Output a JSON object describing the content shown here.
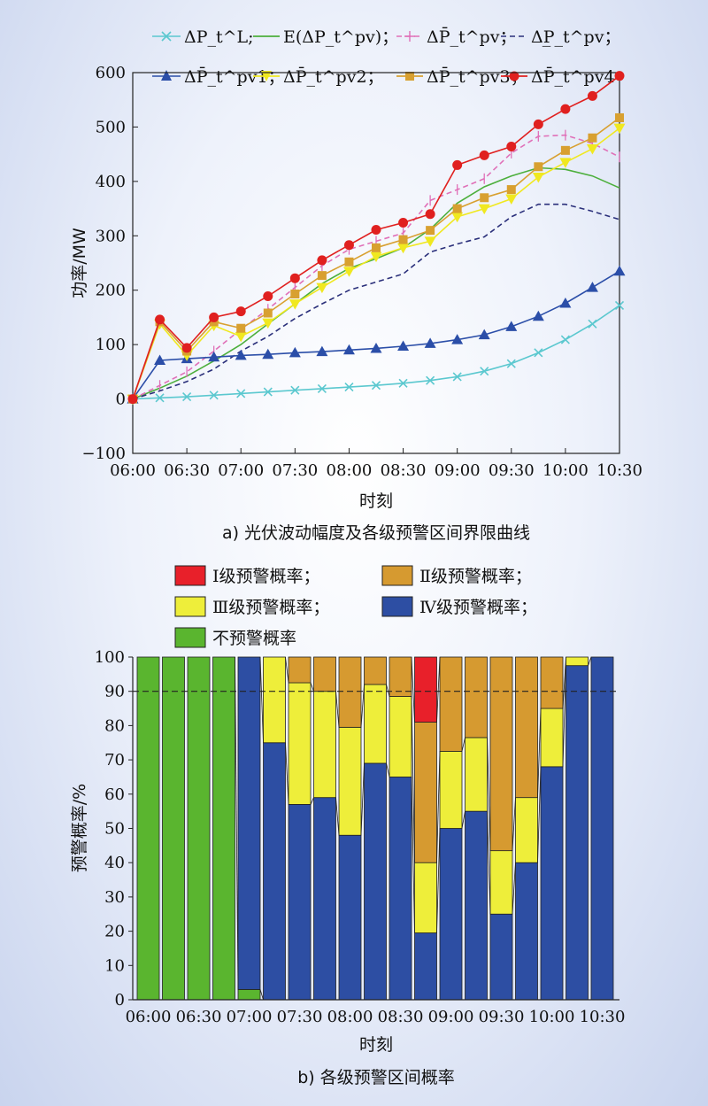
{
  "chart_data": [
    {
      "type": "line",
      "caption": "a) 光伏波动幅度及各级预警区间界限曲线",
      "xlabel": "时刻",
      "ylabel": "功率/MW",
      "ylim": [
        -100,
        600
      ],
      "yticks": [
        600,
        500,
        400,
        300,
        200,
        100,
        0,
        -100
      ],
      "xtick_labels": [
        "06:00",
        "06:30",
        "07:00",
        "07:30",
        "08:00",
        "08:30",
        "09:00",
        "09:30",
        "10:00",
        "10:30"
      ],
      "x_count": 19,
      "grid": false,
      "legend": {
        "position": "top"
      },
      "series": [
        {
          "name": "ΔP_t^L;",
          "color": "#5bc8cf",
          "dash": "",
          "marker": "x",
          "values": [
            0,
            2,
            4,
            7,
            10,
            13,
            16,
            19,
            22,
            25,
            29,
            34,
            41,
            51,
            65,
            85,
            109,
            138,
            172
          ]
        },
        {
          "name": "E(ΔP_t^pv)；",
          "color": "#4caf3c",
          "dash": "",
          "marker": "none",
          "values": [
            0,
            20,
            42,
            70,
            100,
            138,
            175,
            212,
            240,
            258,
            278,
            312,
            360,
            390,
            410,
            425,
            422,
            410,
            388
          ]
        },
        {
          "name": "ΔP̄_t^pv；",
          "color": "#e070b8",
          "dash": "6,4",
          "marker": "plus",
          "values": [
            0,
            25,
            50,
            88,
            128,
            165,
            205,
            245,
            275,
            290,
            305,
            365,
            385,
            405,
            452,
            483,
            485,
            470,
            445
          ]
        },
        {
          "name": "ΔP̲_t^pv；",
          "color": "#2a2f7a",
          "dash": "6,4",
          "marker": "none",
          "values": [
            0,
            15,
            32,
            55,
            88,
            115,
            148,
            175,
            200,
            215,
            230,
            270,
            285,
            298,
            335,
            358,
            358,
            345,
            330
          ]
        },
        {
          "name": "ΔP̄_t^pv1；",
          "color": "#2b4ea8",
          "dash": "",
          "marker": "triangle-up",
          "values": [
            0,
            71,
            74,
            77,
            80,
            82,
            85,
            87,
            90,
            93,
            97,
            102,
            109,
            118,
            133,
            152,
            176,
            205,
            235
          ]
        },
        {
          "name": "ΔP̄_t^pv2；",
          "color": "#f0e820",
          "dash": "",
          "marker": "triangle-down",
          "values": [
            0,
            138,
            80,
            135,
            115,
            140,
            175,
            205,
            235,
            262,
            278,
            290,
            335,
            350,
            368,
            408,
            435,
            460,
            498
          ]
        },
        {
          "name": "ΔP̄_t^pv3；",
          "color": "#d8a030",
          "dash": "",
          "marker": "square",
          "values": [
            0,
            142,
            88,
            142,
            130,
            158,
            193,
            227,
            252,
            278,
            293,
            310,
            350,
            370,
            385,
            427,
            457,
            480,
            517
          ]
        },
        {
          "name": "ΔP̄_t^pv4",
          "color": "#e0201f",
          "dash": "",
          "marker": "circle",
          "values": [
            0,
            146,
            94,
            150,
            161,
            189,
            222,
            255,
            283,
            311,
            324,
            340,
            430,
            448,
            464,
            505,
            533,
            557,
            594
          ]
        }
      ]
    },
    {
      "type": "bar",
      "stacked": true,
      "caption": "b) 各级预警区间概率",
      "xlabel": "时刻",
      "ylabel": "预警概率/%",
      "ylim": [
        0,
        100
      ],
      "yticks": [
        100,
        90,
        80,
        70,
        60,
        50,
        40,
        30,
        20,
        10,
        0
      ],
      "xtick_labels": [
        "06:00",
        "06:30",
        "07:00",
        "07:30",
        "08:00",
        "08:30",
        "09:00",
        "09:30",
        "10:00",
        "10:30"
      ],
      "threshold": 90,
      "legend": {
        "position": "top"
      },
      "series": [
        {
          "name": "不预警概率",
          "color": "#5ab52f",
          "values": [
            100,
            100,
            100,
            100,
            3,
            0,
            0,
            0,
            0,
            0,
            0,
            0,
            0,
            0,
            0,
            0,
            0,
            0,
            0
          ]
        },
        {
          "name": "Ⅳ级预警概率；",
          "color": "#2d4ea3",
          "values": [
            0,
            0,
            0,
            0,
            97,
            75,
            57,
            59,
            48,
            69,
            65,
            19.5,
            50,
            55,
            25,
            40,
            68,
            97.5,
            100
          ]
        },
        {
          "name": "Ⅲ级预警概率；",
          "color": "#eeee3a",
          "values": [
            0,
            0,
            0,
            0,
            0,
            25,
            35.5,
            31,
            31.5,
            23,
            23.5,
            20.5,
            22.5,
            21.5,
            18.5,
            19,
            17,
            2.5,
            0
          ]
        },
        {
          "name": "Ⅱ级预警概率；",
          "color": "#d69a30",
          "values": [
            0,
            0,
            0,
            0,
            0,
            0,
            7.5,
            10,
            20.5,
            8,
            11.5,
            41,
            27.5,
            23.5,
            56.5,
            41,
            15,
            0,
            0
          ]
        },
        {
          "name": "Ⅰ级预警概率；",
          "color": "#e8202a",
          "values": [
            0,
            0,
            0,
            0,
            0,
            0,
            0,
            0,
            0,
            0,
            0,
            19,
            0,
            0,
            0,
            0,
            0,
            0,
            0
          ]
        }
      ]
    }
  ]
}
